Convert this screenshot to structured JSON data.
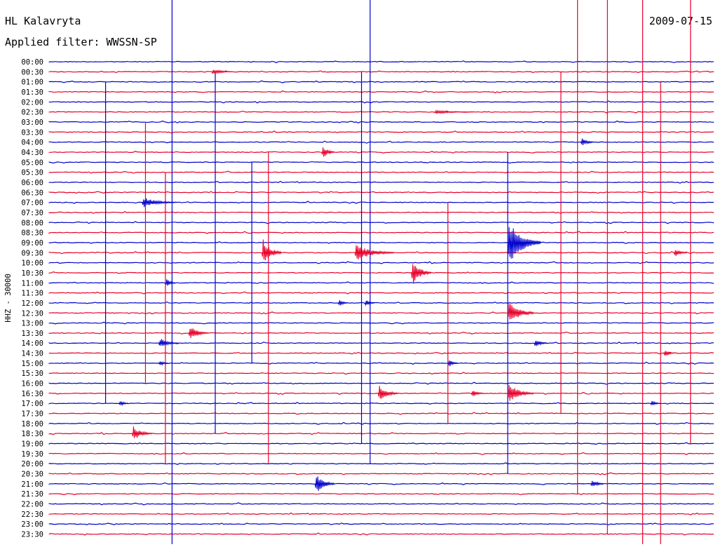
{
  "header": {
    "station": "HL Kalavryta",
    "filter": "Applied filter: WWSSN-SP",
    "date": "2009-07-15"
  },
  "chart_data": {
    "type": "helicorder",
    "title": "HL Kalavryta",
    "subtitle": "Applied filter: WWSSN-SP",
    "date": "2009-07-15",
    "ylabel": "HHZ - 30000",
    "xlabel": "",
    "grid": false,
    "row_colors": [
      "#0000cc",
      "#e8002a"
    ],
    "row_labels": [
      "00:00",
      "00:30",
      "01:00",
      "01:30",
      "02:00",
      "02:30",
      "03:00",
      "03:30",
      "04:00",
      "04:30",
      "05:00",
      "05:30",
      "06:00",
      "06:30",
      "07:00",
      "07:30",
      "08:00",
      "08:30",
      "09:00",
      "09:30",
      "10:00",
      "10:30",
      "11:00",
      "11:30",
      "12:00",
      "12:30",
      "13:00",
      "13:30",
      "14:00",
      "14:30",
      "15:00",
      "15:30",
      "16:00",
      "16:30",
      "17:00",
      "17:30",
      "18:00",
      "18:30",
      "19:00",
      "19:30",
      "20:00",
      "20:30",
      "21:00",
      "21:30",
      "22:00",
      "22:30",
      "23:00",
      "23:30"
    ],
    "events": [
      {
        "row": 1,
        "x": 0.245,
        "amp": 0.35,
        "dur": 0.03
      },
      {
        "row": 5,
        "x": 0.58,
        "amp": 0.2,
        "dur": 0.06
      },
      {
        "row": 8,
        "x": 0.8,
        "amp": 0.6,
        "dur": 0.02
      },
      {
        "row": 9,
        "x": 0.41,
        "amp": 0.9,
        "dur": 0.02
      },
      {
        "row": 14,
        "x": 0.14,
        "amp": 0.6,
        "dur": 0.05
      },
      {
        "row": 18,
        "x": 0.69,
        "amp": 2.6,
        "dur": 0.05
      },
      {
        "row": 19,
        "x": 0.32,
        "amp": 1.6,
        "dur": 0.03
      },
      {
        "row": 19,
        "x": 0.46,
        "amp": 0.9,
        "dur": 0.06
      },
      {
        "row": 19,
        "x": 0.94,
        "amp": 0.5,
        "dur": 0.02
      },
      {
        "row": 21,
        "x": 0.545,
        "amp": 1.5,
        "dur": 0.03
      },
      {
        "row": 22,
        "x": 0.175,
        "amp": 0.6,
        "dur": 0.015
      },
      {
        "row": 24,
        "x": 0.435,
        "amp": 0.5,
        "dur": 0.015
      },
      {
        "row": 24,
        "x": 0.475,
        "amp": 0.5,
        "dur": 0.015
      },
      {
        "row": 25,
        "x": 0.69,
        "amp": 1.4,
        "dur": 0.04
      },
      {
        "row": 27,
        "x": 0.21,
        "amp": 0.9,
        "dur": 0.03
      },
      {
        "row": 28,
        "x": 0.165,
        "amp": 0.6,
        "dur": 0.03
      },
      {
        "row": 28,
        "x": 0.73,
        "amp": 0.6,
        "dur": 0.02
      },
      {
        "row": 29,
        "x": 0.925,
        "amp": 0.6,
        "dur": 0.015
      },
      {
        "row": 30,
        "x": 0.165,
        "amp": 0.4,
        "dur": 0.015
      },
      {
        "row": 30,
        "x": 0.6,
        "amp": 0.6,
        "dur": 0.015
      },
      {
        "row": 33,
        "x": 0.495,
        "amp": 1.0,
        "dur": 0.03
      },
      {
        "row": 33,
        "x": 0.635,
        "amp": 0.5,
        "dur": 0.02
      },
      {
        "row": 33,
        "x": 0.69,
        "amp": 1.1,
        "dur": 0.04
      },
      {
        "row": 34,
        "x": 0.105,
        "amp": 0.4,
        "dur": 0.015
      },
      {
        "row": 34,
        "x": 0.905,
        "amp": 0.4,
        "dur": 0.015
      },
      {
        "row": 37,
        "x": 0.125,
        "amp": 0.9,
        "dur": 0.03
      },
      {
        "row": 42,
        "x": 0.4,
        "amp": 1.2,
        "dur": 0.03
      },
      {
        "row": 42,
        "x": 0.815,
        "amp": 0.6,
        "dur": 0.02
      }
    ],
    "spikes": [
      {
        "x": 0.185,
        "row_from": 0,
        "row_to": 48,
        "color": "#0000cc"
      },
      {
        "x": 0.483,
        "row_from": 0,
        "row_to": 40,
        "color": "#0000cc"
      },
      {
        "x": 0.893,
        "row_from": 0,
        "row_to": 48,
        "color": "#e8002a"
      },
      {
        "x": 0.84,
        "row_from": 0,
        "row_to": 47,
        "color": "#e8002a"
      },
      {
        "x": 0.795,
        "row_from": 0,
        "row_to": 43,
        "color": "#e8002a"
      },
      {
        "x": 0.965,
        "row_from": 0,
        "row_to": 38,
        "color": "#e8002a"
      },
      {
        "x": 0.92,
        "row_from": 2,
        "row_to": 48,
        "color": "#e8002a"
      },
      {
        "x": 0.77,
        "row_from": 1,
        "row_to": 35,
        "color": "#e8002a"
      },
      {
        "x": 0.25,
        "row_from": 1,
        "row_to": 37,
        "color": "#0000cc"
      },
      {
        "x": 0.47,
        "row_from": 1,
        "row_to": 38,
        "color": "#0000cc"
      },
      {
        "x": 0.085,
        "row_from": 2,
        "row_to": 34,
        "color": "#0000cc"
      },
      {
        "x": 0.145,
        "row_from": 6,
        "row_to": 32,
        "color": "#e8002a"
      },
      {
        "x": 0.33,
        "row_from": 9,
        "row_to": 40,
        "color": "#e8002a"
      },
      {
        "x": 0.69,
        "row_from": 9,
        "row_to": 41,
        "color": "#0000cc"
      },
      {
        "x": 0.305,
        "row_from": 10,
        "row_to": 30,
        "color": "#0000cc"
      },
      {
        "x": 0.175,
        "row_from": 11,
        "row_to": 40,
        "color": "#e8002a"
      },
      {
        "x": 0.6,
        "row_from": 14,
        "row_to": 36,
        "color": "#e8002a"
      }
    ]
  }
}
